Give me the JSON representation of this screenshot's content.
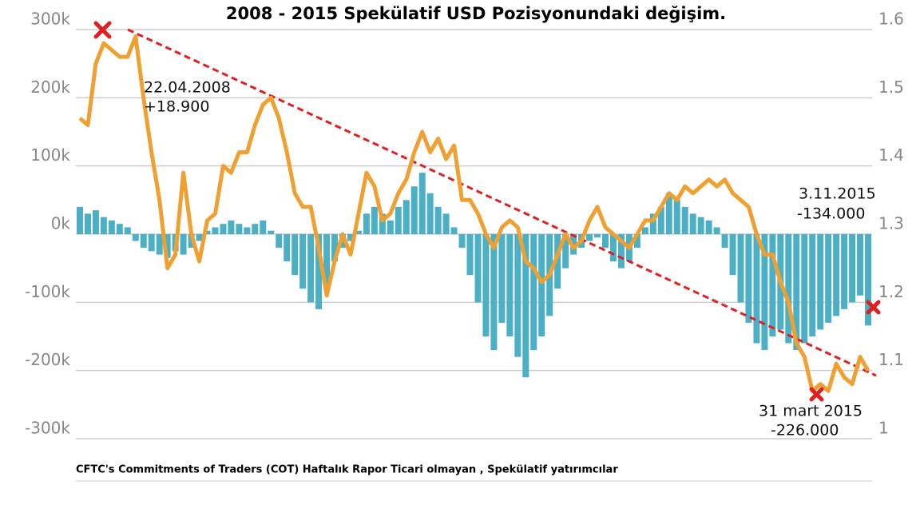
{
  "chart_data": {
    "type": "combo",
    "title": "2008 - 2015 Spekülatif USD Pozisyonundaki değişim.",
    "source": "CFTC's Commitments of Traders (COT) Haftalık Rapor Ticari olmayan , Spekülatif yatırımcılar",
    "annotations": [
      {
        "lines": [
          "22.04.2008",
          "+18.900"
        ]
      },
      {
        "lines": [
          "3.11.2015",
          "-134.000"
        ]
      },
      {
        "lines": [
          "31 mart 2015",
          "-226.000"
        ]
      }
    ],
    "categories": [
      null,
      null,
      null,
      null,
      null,
      null,
      null,
      null,
      null,
      null,
      null,
      null,
      null,
      null,
      null,
      null,
      null,
      null,
      null,
      null,
      null,
      null,
      null,
      null,
      null,
      null,
      null,
      null,
      null,
      null,
      null,
      null,
      null,
      null,
      null,
      null,
      null,
      null,
      null,
      null,
      null,
      null,
      null,
      null,
      null,
      null,
      null,
      null,
      null,
      null,
      null,
      null,
      null,
      null,
      null,
      null,
      null,
      null,
      null,
      null,
      null,
      null,
      null,
      null,
      null,
      null,
      null,
      null,
      null,
      null,
      null,
      null,
      null,
      null,
      null,
      null,
      null,
      null,
      null,
      null,
      null,
      null,
      null,
      null,
      null,
      null,
      null,
      null,
      null,
      null,
      null,
      null,
      null,
      null,
      null,
      null,
      null,
      null,
      null,
      null
    ],
    "series": [
      {
        "type": "bar",
        "color": "#4bb0c6",
        "values": [
          40000,
          30000,
          35000,
          25000,
          20000,
          15000,
          10000,
          -10000,
          -20000,
          -25000,
          -30000,
          -35000,
          -25000,
          -30000,
          -20000,
          -10000,
          5000,
          10000,
          15000,
          20000,
          15000,
          10000,
          15000,
          20000,
          5000,
          -20000,
          -40000,
          -60000,
          -80000,
          -100000,
          -110000,
          -80000,
          -40000,
          -20000,
          -10000,
          5000,
          30000,
          40000,
          30000,
          20000,
          40000,
          50000,
          70000,
          90000,
          60000,
          40000,
          30000,
          10000,
          -20000,
          -60000,
          -100000,
          -150000,
          -170000,
          -130000,
          -150000,
          -180000,
          -210000,
          -170000,
          -150000,
          -120000,
          -80000,
          -50000,
          -30000,
          -20000,
          -10000,
          -5000,
          -20000,
          -40000,
          -50000,
          -40000,
          -20000,
          10000,
          30000,
          40000,
          60000,
          50000,
          40000,
          30000,
          25000,
          20000,
          10000,
          -20000,
          -60000,
          -100000,
          -130000,
          -160000,
          -170000,
          -150000,
          -140000,
          -160000,
          -170000,
          -160000,
          -150000,
          -140000,
          -130000,
          -120000,
          -110000,
          -100000,
          -90000,
          -134000
        ]
      },
      {
        "type": "line",
        "axis": "y2",
        "color": "#f0a030",
        "values": [
          1.47,
          1.46,
          1.55,
          1.58,
          1.57,
          1.56,
          1.56,
          1.59,
          1.5,
          1.42,
          1.35,
          1.25,
          1.27,
          1.39,
          1.3,
          1.26,
          1.32,
          1.33,
          1.4,
          1.39,
          1.42,
          1.42,
          1.46,
          1.49,
          1.5,
          1.47,
          1.42,
          1.36,
          1.34,
          1.34,
          1.28,
          1.21,
          1.26,
          1.3,
          1.27,
          1.33,
          1.39,
          1.37,
          1.32,
          1.33,
          1.36,
          1.38,
          1.42,
          1.45,
          1.42,
          1.44,
          1.41,
          1.43,
          1.35,
          1.35,
          1.33,
          1.3,
          1.28,
          1.31,
          1.32,
          1.31,
          1.26,
          1.25,
          1.23,
          1.24,
          1.27,
          1.3,
          1.28,
          1.29,
          1.32,
          1.34,
          1.31,
          1.3,
          1.29,
          1.28,
          1.3,
          1.32,
          1.32,
          1.34,
          1.36,
          1.35,
          1.37,
          1.36,
          1.37,
          1.38,
          1.37,
          1.38,
          1.36,
          1.35,
          1.34,
          1.3,
          1.27,
          1.27,
          1.23,
          1.2,
          1.14,
          1.12,
          1.07,
          1.08,
          1.07,
          1.11,
          1.09,
          1.08,
          1.12,
          1.1
        ]
      }
    ],
    "ylim": [
      -300000,
      300000
    ],
    "yticks": [
      {
        "value": 300000,
        "label": "300k"
      },
      {
        "value": 200000,
        "label": "200k"
      },
      {
        "value": 100000,
        "label": "100k"
      },
      {
        "value": 0,
        "label": "0k"
      },
      {
        "value": -100000,
        "label": "-100k"
      },
      {
        "value": -200000,
        "label": "-200k"
      },
      {
        "value": -300000,
        "label": "-300k"
      }
    ],
    "y2lim": [
      1,
      1.6
    ],
    "y2ticks": [
      1.6,
      1.5,
      1.4,
      1.3,
      1.2,
      1.1,
      1
    ],
    "grid": true
  }
}
